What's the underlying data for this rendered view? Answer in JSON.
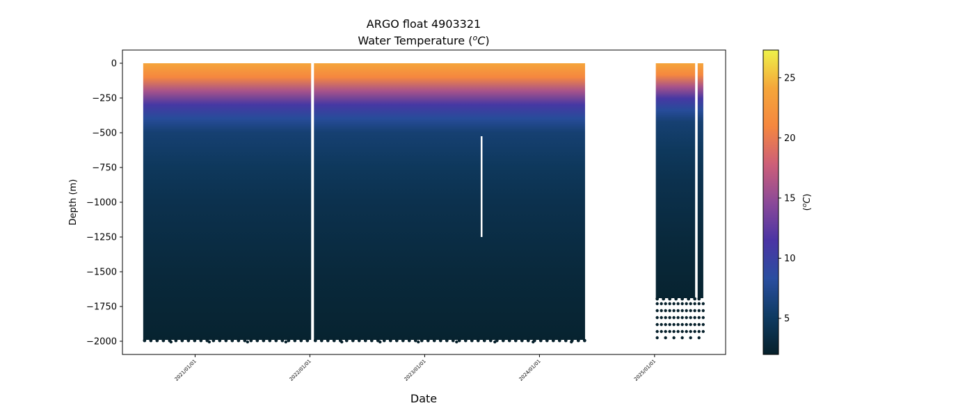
{
  "title_line1": "ARGO float 4903321",
  "title_line2_prefix": "Water Temperature (",
  "title_line2_unit": "o",
  "title_line2_unit_c": "C",
  "title_line2_suffix": ")",
  "chart_data": {
    "type": "scatter",
    "description_of_encoding": "",
    "xlabel": "Date",
    "ylabel": "Depth (m)",
    "xlim": [
      "2020-05-15",
      "2025-08-15"
    ],
    "ylim": [
      -2095,
      95
    ],
    "x_ticks": [
      "2021/01/01",
      "2022/01/01",
      "2023/01/01",
      "2024/01/01",
      "2025/01/01"
    ],
    "y_ticks": [
      0,
      -250,
      -500,
      -750,
      -1000,
      -1250,
      -1500,
      -1750,
      -2000
    ],
    "y_tick_labels": [
      "0",
      "−250",
      "−500",
      "−750",
      "−1000",
      "−1250",
      "−1500",
      "−1750",
      "−2000"
    ],
    "profile_segments": [
      {
        "start": "2020-07-20",
        "end": "2022-01-05",
        "min_depth": -1990
      },
      {
        "start": "2022-01-14",
        "end": "2024-05-25",
        "min_depth": -1990
      },
      {
        "start": "2025-01-05",
        "end": "2025-05-10",
        "min_depth": -1690
      },
      {
        "start": "2025-05-18",
        "end": "2025-06-05",
        "min_depth": -1690
      }
    ],
    "data_gap_line": {
      "date": "2023-07-01",
      "depth_top": -525,
      "depth_bottom": -1250
    },
    "deep_point_rows": [
      -1730,
      -1780,
      -1830,
      -1880,
      -1930,
      -1975
    ],
    "temperature_profile": [
      {
        "depth": 0,
        "temp": 24
      },
      {
        "depth": -100,
        "temp": 21
      },
      {
        "depth": -200,
        "temp": 16
      },
      {
        "depth": -300,
        "temp": 11
      },
      {
        "depth": -400,
        "temp": 8
      },
      {
        "depth": -500,
        "temp": 6
      },
      {
        "depth": -750,
        "temp": 4.8
      },
      {
        "depth": -1000,
        "temp": 4
      },
      {
        "depth": -1500,
        "temp": 3
      },
      {
        "depth": -2000,
        "temp": 2.3
      }
    ],
    "colorbar": {
      "label": "(oC)",
      "label_o": "o",
      "label_c": "C",
      "min": 2,
      "max": 27.3,
      "ticks": [
        5,
        10,
        15,
        20,
        25
      ],
      "colormap": [
        "#06202b",
        "#0f3b62",
        "#2a4ea0",
        "#4b34a4",
        "#8c4a98",
        "#cd5f78",
        "#f5873f",
        "#f5a63a",
        "#eef24a"
      ]
    }
  }
}
